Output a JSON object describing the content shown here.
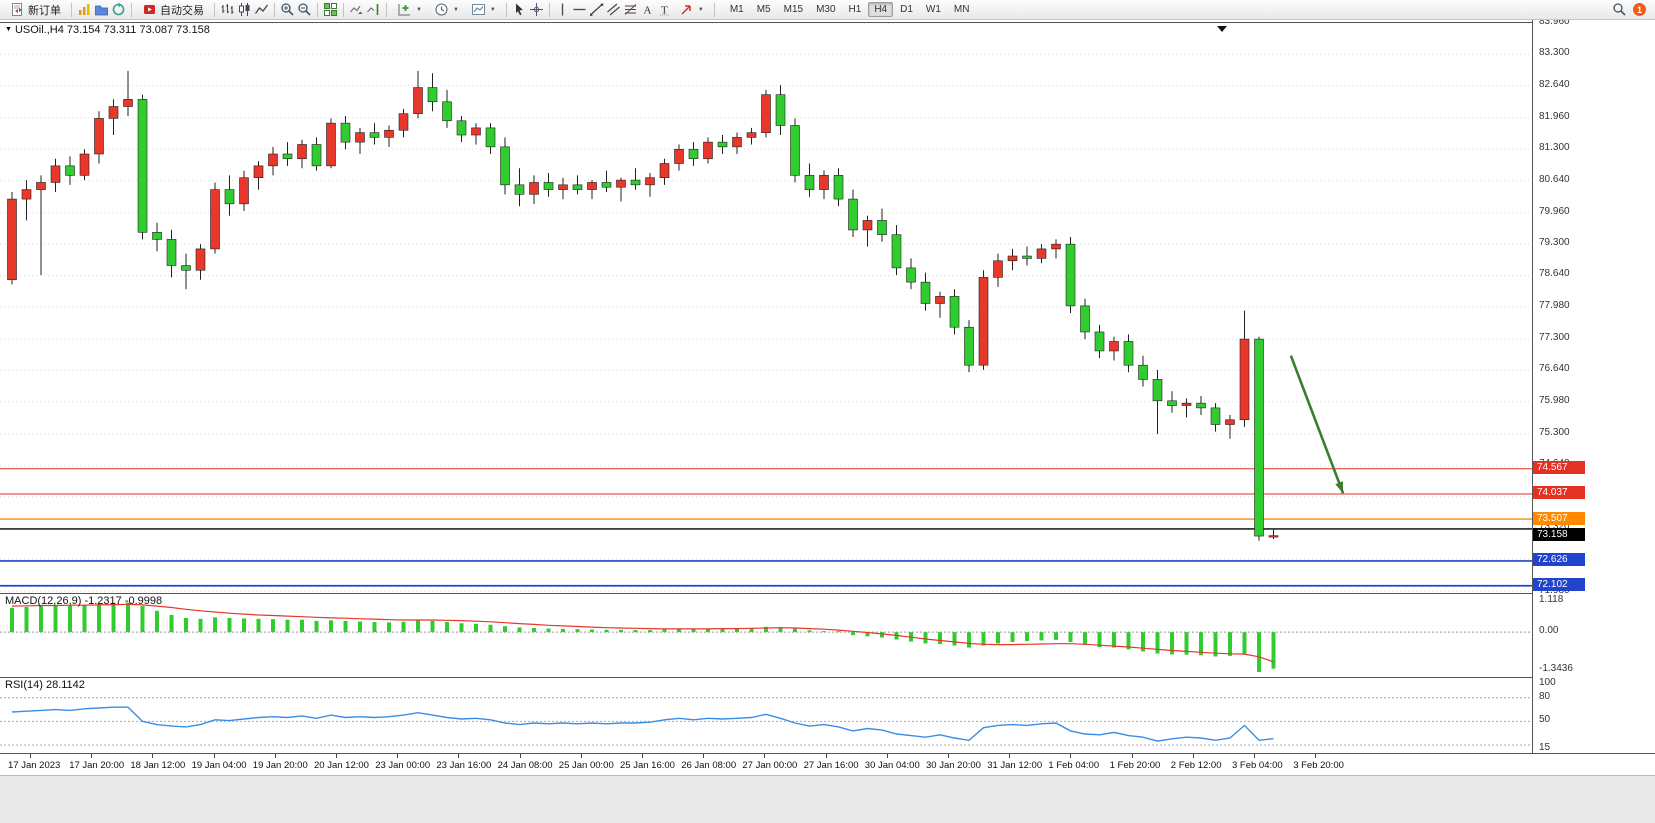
{
  "toolbar": {
    "new_order_label": "新订单",
    "autotrading_label": "自动交易",
    "timeframes": [
      "M1",
      "M5",
      "M15",
      "M30",
      "H1",
      "H4",
      "D1",
      "W1",
      "MN"
    ],
    "active_timeframe": "H4",
    "notification_count": "1"
  },
  "chart": {
    "header": "USOil.,H4 73.154 73.311 73.087 73.158",
    "macd_label": "MACD(12,26,9) -1.2317 -0.9998",
    "rsi_label": "RSI(14) 28.1142"
  },
  "chart_data": {
    "type": "candlestick",
    "symbol": "USOil",
    "timeframe": "H4",
    "ohlc_display": {
      "open": 73.154,
      "high": 73.311,
      "low": 73.087,
      "close": 73.158
    },
    "note": "Chinese color convention: red body = bullish, green body = bearish",
    "colors": {
      "bull": "#e8372b",
      "bear": "#30cc30",
      "wick": "#222222",
      "grid": "#dadada",
      "macd_hist": "#30cc30",
      "macd_signal": "#e8372b",
      "rsi_line": "#3a8ee6",
      "arrow": "#3a7d2f"
    },
    "price_axis": {
      "range": [
        71.95,
        83.96
      ],
      "grid_labels": [
        "83.960",
        "83.300",
        "82.640",
        "81.960",
        "81.300",
        "80.640",
        "79.960",
        "79.300",
        "78.640",
        "77.980",
        "77.300",
        "76.640",
        "75.980",
        "75.300",
        "74.640",
        "73.980",
        "73.320",
        "72.660",
        "71.980"
      ]
    },
    "candles": [
      [
        78.55,
        80.4,
        78.45,
        80.25
      ],
      [
        80.25,
        80.65,
        79.8,
        80.45
      ],
      [
        80.45,
        80.75,
        78.65,
        80.6
      ],
      [
        80.6,
        81.1,
        80.4,
        80.95
      ],
      [
        80.95,
        81.15,
        80.55,
        80.75
      ],
      [
        80.75,
        81.3,
        80.65,
        81.2
      ],
      [
        81.2,
        82.1,
        81.0,
        81.95
      ],
      [
        81.95,
        82.35,
        81.6,
        82.2
      ],
      [
        82.2,
        82.95,
        82.0,
        82.35
      ],
      [
        82.35,
        82.45,
        79.4,
        79.55
      ],
      [
        79.55,
        79.75,
        79.15,
        79.4
      ],
      [
        79.4,
        79.6,
        78.6,
        78.85
      ],
      [
        78.85,
        79.1,
        78.35,
        78.75
      ],
      [
        78.75,
        79.3,
        78.55,
        79.2
      ],
      [
        79.2,
        80.6,
        79.1,
        80.45
      ],
      [
        80.45,
        80.75,
        79.9,
        80.15
      ],
      [
        80.15,
        80.85,
        80.0,
        80.7
      ],
      [
        80.7,
        81.05,
        80.45,
        80.95
      ],
      [
        80.95,
        81.35,
        80.75,
        81.2
      ],
      [
        81.2,
        81.45,
        80.95,
        81.1
      ],
      [
        81.1,
        81.5,
        80.9,
        81.4
      ],
      [
        81.4,
        81.55,
        80.85,
        80.95
      ],
      [
        80.95,
        81.95,
        80.9,
        81.85
      ],
      [
        81.85,
        82.0,
        81.3,
        81.45
      ],
      [
        81.45,
        81.75,
        81.2,
        81.65
      ],
      [
        81.65,
        81.85,
        81.4,
        81.55
      ],
      [
        81.55,
        81.8,
        81.35,
        81.7
      ],
      [
        81.7,
        82.15,
        81.55,
        82.05
      ],
      [
        82.05,
        82.95,
        81.95,
        82.6
      ],
      [
        82.6,
        82.9,
        82.1,
        82.3
      ],
      [
        82.3,
        82.55,
        81.75,
        81.9
      ],
      [
        81.9,
        82.0,
        81.45,
        81.6
      ],
      [
        81.6,
        81.85,
        81.4,
        81.75
      ],
      [
        81.75,
        81.85,
        81.2,
        81.35
      ],
      [
        81.35,
        81.55,
        80.35,
        80.55
      ],
      [
        80.55,
        80.9,
        80.1,
        80.35
      ],
      [
        80.35,
        80.75,
        80.15,
        80.6
      ],
      [
        80.6,
        80.8,
        80.3,
        80.45
      ],
      [
        80.45,
        80.7,
        80.25,
        80.55
      ],
      [
        80.55,
        80.75,
        80.35,
        80.45
      ],
      [
        80.45,
        80.65,
        80.25,
        80.6
      ],
      [
        80.6,
        80.85,
        80.4,
        80.5
      ],
      [
        80.5,
        80.7,
        80.2,
        80.65
      ],
      [
        80.65,
        80.9,
        80.45,
        80.55
      ],
      [
        80.55,
        80.8,
        80.3,
        80.7
      ],
      [
        80.7,
        81.1,
        80.55,
        81.0
      ],
      [
        81.0,
        81.4,
        80.85,
        81.3
      ],
      [
        81.3,
        81.45,
        80.95,
        81.1
      ],
      [
        81.1,
        81.55,
        81.0,
        81.45
      ],
      [
        81.45,
        81.6,
        81.2,
        81.35
      ],
      [
        81.35,
        81.65,
        81.2,
        81.55
      ],
      [
        81.55,
        81.75,
        81.4,
        81.65
      ],
      [
        81.65,
        82.55,
        81.55,
        82.45
      ],
      [
        82.45,
        82.65,
        81.6,
        81.8
      ],
      [
        81.8,
        81.95,
        80.6,
        80.75
      ],
      [
        80.75,
        81.0,
        80.3,
        80.45
      ],
      [
        80.45,
        80.85,
        80.25,
        80.75
      ],
      [
        80.75,
        80.9,
        80.1,
        80.25
      ],
      [
        80.25,
        80.45,
        79.45,
        79.6
      ],
      [
        79.6,
        79.9,
        79.25,
        79.8
      ],
      [
        79.8,
        80.05,
        79.35,
        79.5
      ],
      [
        79.5,
        79.7,
        78.65,
        78.8
      ],
      [
        78.8,
        79.0,
        78.35,
        78.5
      ],
      [
        78.5,
        78.7,
        77.9,
        78.05
      ],
      [
        78.05,
        78.3,
        77.75,
        78.2
      ],
      [
        78.2,
        78.35,
        77.4,
        77.55
      ],
      [
        77.55,
        77.7,
        76.6,
        76.75
      ],
      [
        76.75,
        78.75,
        76.65,
        78.6
      ],
      [
        78.6,
        79.1,
        78.4,
        78.95
      ],
      [
        78.95,
        79.2,
        78.75,
        79.05
      ],
      [
        79.05,
        79.25,
        78.85,
        79.0
      ],
      [
        79.0,
        79.3,
        78.9,
        79.2
      ],
      [
        79.2,
        79.4,
        79.0,
        79.3
      ],
      [
        79.3,
        79.45,
        77.85,
        78.0
      ],
      [
        78.0,
        78.15,
        77.3,
        77.45
      ],
      [
        77.45,
        77.6,
        76.9,
        77.05
      ],
      [
        77.05,
        77.35,
        76.85,
        77.25
      ],
      [
        77.25,
        77.4,
        76.6,
        76.75
      ],
      [
        76.75,
        76.95,
        76.3,
        76.45
      ],
      [
        76.45,
        76.65,
        75.3,
        76.0
      ],
      [
        76.0,
        76.2,
        75.75,
        75.9
      ],
      [
        75.9,
        76.05,
        75.65,
        75.95
      ],
      [
        75.95,
        76.1,
        75.7,
        75.85
      ],
      [
        75.85,
        75.95,
        75.35,
        75.5
      ],
      [
        75.5,
        75.7,
        75.2,
        75.6
      ],
      [
        75.6,
        77.9,
        75.45,
        77.3
      ],
      [
        77.3,
        77.35,
        73.05,
        73.15
      ],
      [
        73.154,
        73.311,
        73.087,
        73.158
      ]
    ],
    "hlines": [
      {
        "price": 74.567,
        "label": "74.567",
        "color": "#e53024",
        "width": 1
      },
      {
        "price": 74.037,
        "label": "74.037",
        "color": "#e53024",
        "width": 1
      },
      {
        "price": 73.507,
        "label": "73.507",
        "color": "#ff8a00",
        "width": 1.4
      },
      {
        "price": 73.3,
        "color": "#000000",
        "width": 1.4
      },
      {
        "price": 72.626,
        "label": "72.626",
        "color": "#2244cc",
        "width": 1.7
      },
      {
        "price": 72.102,
        "label": "72.102",
        "color": "#2244cc",
        "width": 1.7
      }
    ],
    "current_price_badge": {
      "value": "73.158",
      "bg": "#000000"
    },
    "arrow": {
      "from": {
        "index": 88.2,
        "price": 76.95
      },
      "to": {
        "index": 91.8,
        "price": 74.05
      }
    },
    "macd": {
      "label": "MACD(12,26,9) -1.2317 -0.9998",
      "params": "12,26,9",
      "value": -1.2317,
      "signal_value": -0.9998,
      "range": [
        -1.3436,
        1.118
      ],
      "axis_labels": [
        "1.118",
        "0.00",
        "-1.3436"
      ],
      "histogram": [
        0.82,
        0.85,
        0.88,
        0.9,
        0.89,
        0.92,
        0.96,
        0.99,
        1.0,
        0.88,
        0.72,
        0.58,
        0.48,
        0.45,
        0.5,
        0.48,
        0.46,
        0.45,
        0.44,
        0.42,
        0.42,
        0.38,
        0.4,
        0.38,
        0.36,
        0.34,
        0.33,
        0.35,
        0.4,
        0.38,
        0.34,
        0.3,
        0.28,
        0.25,
        0.2,
        0.16,
        0.14,
        0.12,
        0.11,
        0.1,
        0.09,
        0.08,
        0.08,
        0.07,
        0.07,
        0.09,
        0.11,
        0.11,
        0.12,
        0.12,
        0.13,
        0.14,
        0.18,
        0.17,
        0.12,
        0.06,
        0.03,
        -0.02,
        -0.1,
        -0.14,
        -0.18,
        -0.25,
        -0.32,
        -0.38,
        -0.4,
        -0.45,
        -0.52,
        -0.45,
        -0.38,
        -0.33,
        -0.3,
        -0.28,
        -0.26,
        -0.33,
        -0.42,
        -0.5,
        -0.52,
        -0.58,
        -0.65,
        -0.72,
        -0.75,
        -0.76,
        -0.78,
        -0.82,
        -0.8,
        -0.72,
        -1.3436,
        -1.2317
      ],
      "signal": [
        0.88,
        0.89,
        0.9,
        0.9,
        0.91,
        0.91,
        0.92,
        0.93,
        0.94,
        0.92,
        0.88,
        0.83,
        0.77,
        0.72,
        0.68,
        0.64,
        0.61,
        0.58,
        0.56,
        0.54,
        0.52,
        0.5,
        0.48,
        0.47,
        0.45,
        0.44,
        0.42,
        0.41,
        0.41,
        0.41,
        0.4,
        0.39,
        0.37,
        0.35,
        0.32,
        0.29,
        0.26,
        0.23,
        0.21,
        0.19,
        0.17,
        0.15,
        0.14,
        0.13,
        0.12,
        0.11,
        0.11,
        0.11,
        0.11,
        0.12,
        0.12,
        0.13,
        0.14,
        0.15,
        0.14,
        0.12,
        0.1,
        0.07,
        0.03,
        -0.01,
        -0.06,
        -0.11,
        -0.17,
        -0.23,
        -0.28,
        -0.33,
        -0.38,
        -0.41,
        -0.42,
        -0.42,
        -0.41,
        -0.4,
        -0.39,
        -0.39,
        -0.41,
        -0.44,
        -0.47,
        -0.5,
        -0.54,
        -0.58,
        -0.62,
        -0.65,
        -0.68,
        -0.71,
        -0.73,
        -0.74,
        -0.83,
        -0.9998
      ]
    },
    "rsi": {
      "label": "RSI(14) 28.1142",
      "period": 14,
      "value": 28.1142,
      "range": [
        15,
        100
      ],
      "axis_labels": [
        "100",
        "80",
        "50",
        "15"
      ],
      "levels": [
        80,
        50,
        20
      ],
      "values": [
        62,
        63,
        64,
        65,
        64,
        66,
        67,
        68,
        68,
        50,
        46,
        44,
        43,
        46,
        52,
        51,
        53,
        55,
        56,
        55,
        57,
        54,
        58,
        55,
        56,
        55,
        56,
        58,
        61,
        58,
        55,
        53,
        54,
        52,
        48,
        46,
        48,
        47,
        48,
        47,
        48,
        47,
        48,
        48,
        49,
        52,
        54,
        52,
        54,
        53,
        54,
        55,
        59,
        54,
        48,
        44,
        46,
        43,
        38,
        41,
        39,
        34,
        32,
        30,
        33,
        29,
        26,
        42,
        45,
        46,
        45,
        47,
        48,
        38,
        34,
        33,
        36,
        32,
        30,
        25,
        28,
        30,
        29,
        26,
        29,
        45,
        26,
        28.1142
      ]
    },
    "time_labels": [
      "17 Jan 2023",
      "17 Jan 20:00",
      "18 Jan 12:00",
      "19 Jan 04:00",
      "19 Jan 20:00",
      "20 Jan 12:00",
      "23 Jan 00:00",
      "23 Jan 16:00",
      "24 Jan 08:00",
      "25 Jan 00:00",
      "25 Jan 16:00",
      "26 Jan 08:00",
      "27 Jan 00:00",
      "27 Jan 16:00",
      "30 Jan 04:00",
      "30 Jan 20:00",
      "31 Jan 12:00",
      "1 Feb 04:00",
      "1 Feb 20:00",
      "2 Feb 12:00",
      "3 Feb 04:00",
      "3 Feb 20:00"
    ]
  }
}
